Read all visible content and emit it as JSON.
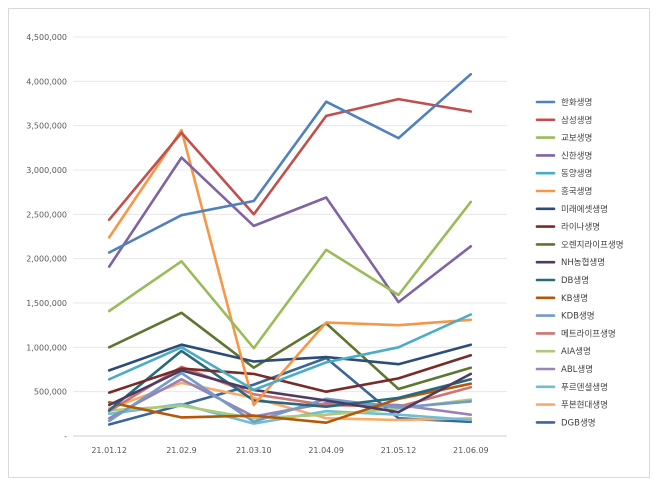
{
  "chart_data": {
    "type": "line",
    "title": "",
    "xlabel": "",
    "ylabel": "",
    "ylim": [
      0,
      4500000
    ],
    "grid": true,
    "legend_position": "right",
    "categories": [
      "21.01.12",
      "21.02.9",
      "21.03.10",
      "21.04.09",
      "21.05.12",
      "21.06.09"
    ],
    "y_ticks": [
      "-",
      "500,000",
      "1,000,000",
      "1,500,000",
      "2,000,000",
      "2,500,000",
      "3,000,000",
      "3,500,000",
      "4,000,000",
      "4,500,000"
    ],
    "series": [
      {
        "name": "한화생명",
        "color": "#4f81bd",
        "values": [
          2070000,
          2490000,
          2650000,
          3770000,
          3360000,
          4080000
        ]
      },
      {
        "name": "삼성생명",
        "color": "#c0504d",
        "values": [
          2440000,
          3420000,
          2500000,
          3610000,
          3800000,
          3660000
        ]
      },
      {
        "name": "교보생명",
        "color": "#9bbb59",
        "values": [
          1410000,
          1970000,
          990000,
          2100000,
          1590000,
          2640000
        ]
      },
      {
        "name": "신한생명",
        "color": "#8064a2",
        "values": [
          1910000,
          3140000,
          2370000,
          2690000,
          1510000,
          2140000
        ]
      },
      {
        "name": "동양생명",
        "color": "#4bacc6",
        "values": [
          640000,
          1000000,
          520000,
          830000,
          1000000,
          1370000
        ]
      },
      {
        "name": "흥국생명",
        "color": "#f79646",
        "values": [
          2240000,
          3450000,
          350000,
          1280000,
          1250000,
          1310000
        ]
      },
      {
        "name": "미래에셋생명",
        "color": "#2c4d75",
        "values": [
          740000,
          1030000,
          840000,
          890000,
          810000,
          1030000
        ]
      },
      {
        "name": "라이나생명",
        "color": "#772c2a",
        "values": [
          490000,
          760000,
          700000,
          500000,
          650000,
          910000
        ]
      },
      {
        "name": "오렌지라이프생명",
        "color": "#5f7530",
        "values": [
          1000000,
          1390000,
          770000,
          1270000,
          530000,
          770000
        ]
      },
      {
        "name": "NH농협생명",
        "color": "#4d3b62",
        "values": [
          350000,
          740000,
          520000,
          400000,
          270000,
          700000
        ]
      },
      {
        "name": "DB생명",
        "color": "#276a7c",
        "values": [
          290000,
          960000,
          400000,
          330000,
          430000,
          640000
        ]
      },
      {
        "name": "KB생명",
        "color": "#b65708",
        "values": [
          380000,
          210000,
          230000,
          150000,
          420000,
          590000
        ]
      },
      {
        "name": "KDB생명",
        "color": "#729aca",
        "values": [
          170000,
          710000,
          160000,
          420000,
          320000,
          390000
        ]
      },
      {
        "name": "메트라이프생명",
        "color": "#cd7371",
        "values": [
          280000,
          780000,
          470000,
          350000,
          330000,
          550000
        ]
      },
      {
        "name": "AIA생명",
        "color": "#afc97a",
        "values": [
          290000,
          340000,
          200000,
          240000,
          310000,
          410000
        ]
      },
      {
        "name": "ABL생명",
        "color": "#9983b5",
        "values": [
          200000,
          640000,
          220000,
          370000,
          350000,
          240000
        ]
      },
      {
        "name": "푸르덴셜생명",
        "color": "#6fbdd1",
        "values": [
          250000,
          360000,
          140000,
          280000,
          240000,
          180000
        ]
      },
      {
        "name": "푸본현대생명",
        "color": "#f9ab6b",
        "values": [
          310000,
          600000,
          430000,
          200000,
          180000,
          200000
        ]
      },
      {
        "name": "DGB생명",
        "color": "#3a6699",
        "values": [
          130000,
          350000,
          580000,
          880000,
          200000,
          160000
        ]
      }
    ]
  }
}
